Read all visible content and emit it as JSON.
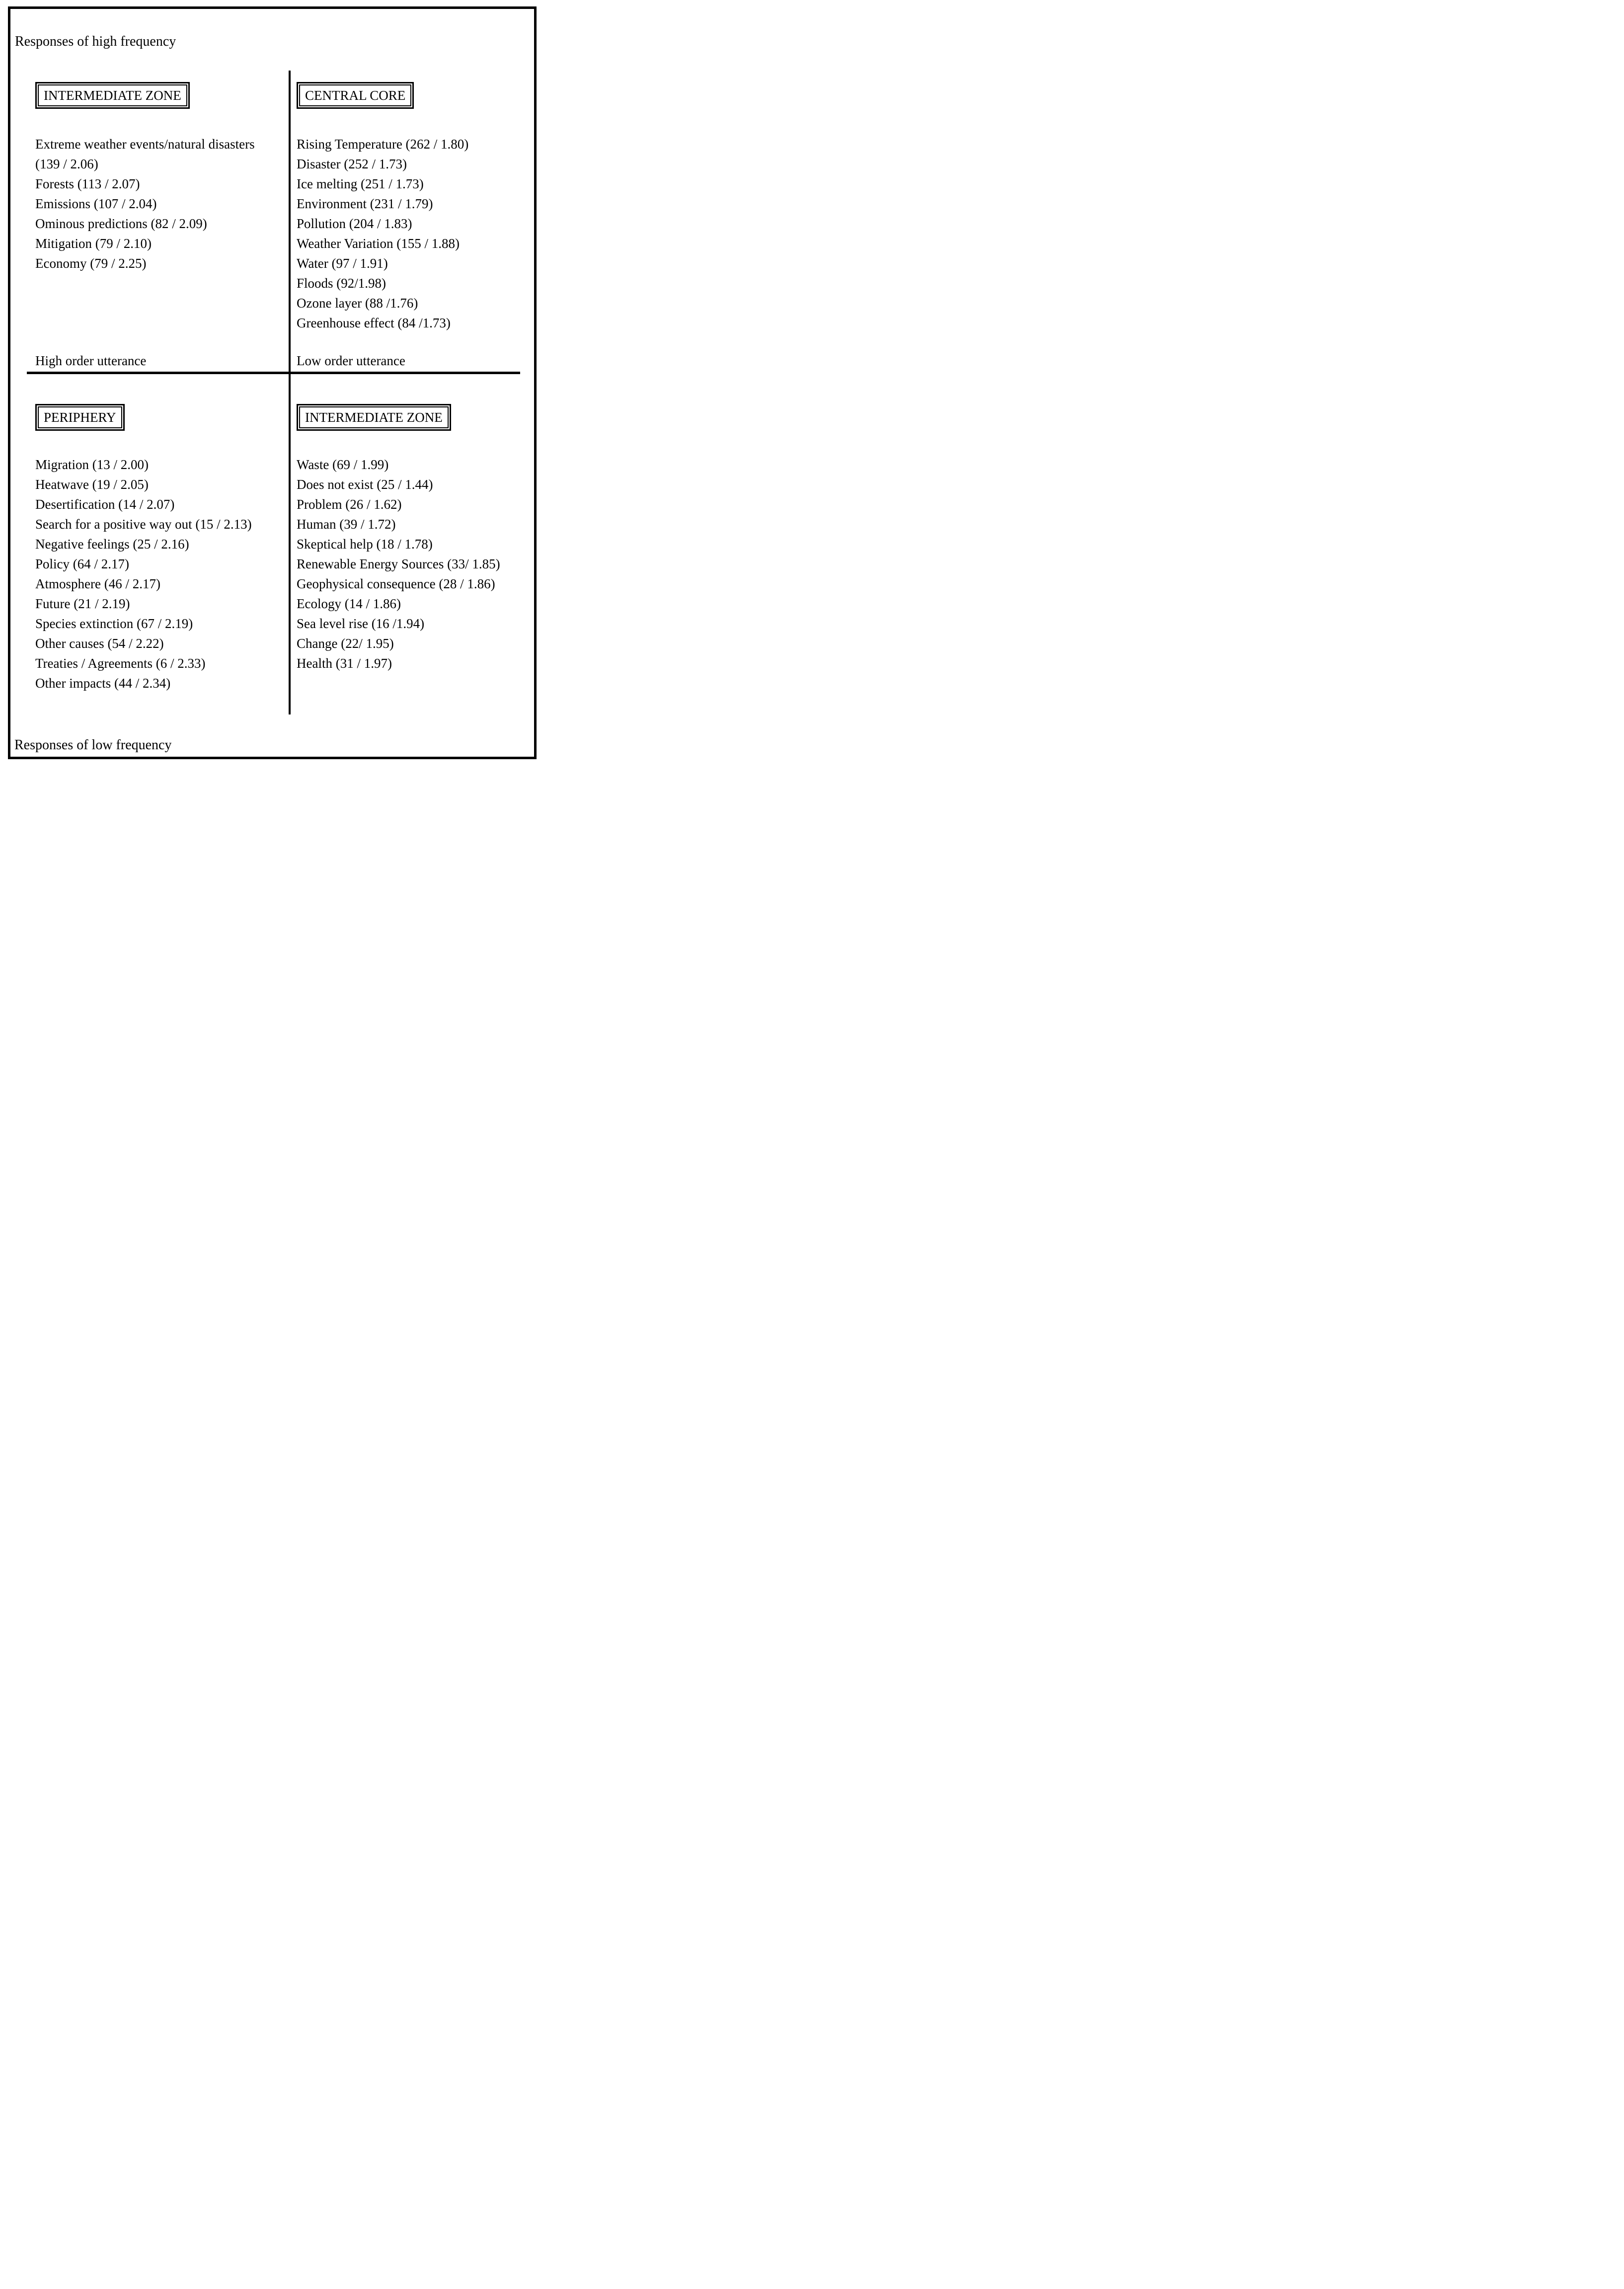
{
  "page": {
    "title_top": "Responses of high frequency",
    "title_bottom": "Responses of low frequency"
  },
  "colors": {
    "ink": "#000000",
    "paper": "#ffffff"
  },
  "quadrants": {
    "top_left": {
      "zone_label": "INTERMEDIATE ZONE",
      "axis_label": "High order utterance",
      "lines": [
        "Extreme weather events/natural disasters",
        "(139 / 2.06)",
        "Forests (113 / 2.07)",
        "Emissions (107 / 2.04)",
        "Ominous predictions (82 / 2.09)",
        "Mitigation (79 / 2.10)",
        "Economy (79 / 2.25)"
      ]
    },
    "top_right": {
      "zone_label": "CENTRAL CORE",
      "axis_label": "Low order utterance",
      "lines": [
        "Rising Temperature (262 / 1.80)",
        "Disaster (252 / 1.73)",
        "Ice melting (251 / 1.73)",
        "Environment (231 / 1.79)",
        "Pollution (204 / 1.83)",
        "Weather Variation (155 / 1.88)",
        "Water (97 / 1.91)",
        "Floods (92/1.98)",
        "Ozone layer (88 /1.76)",
        "Greenhouse effect (84 /1.73)"
      ]
    },
    "bottom_left": {
      "zone_label": "PERIPHERY",
      "lines": [
        "Migration (13 / 2.00)",
        "Heatwave (19 / 2.05)",
        "Desertification (14 / 2.07)",
        "Search for a positive way out (15 / 2.13)",
        "Negative feelings (25 / 2.16)",
        "Policy (64 / 2.17)",
        "Atmosphere (46 / 2.17)",
        "Future (21 / 2.19)",
        "Species extinction (67 / 2.19)",
        "Other causes (54 / 2.22)",
        "Treaties / Agreements (6 / 2.33)",
        "Other impacts (44 / 2.34)"
      ]
    },
    "bottom_right": {
      "zone_label": "INTERMEDIATE ZONE",
      "lines": [
        "Waste (69 / 1.99)",
        "Does not exist (25 / 1.44)",
        "Problem (26 / 1.62)",
        "Human (39 / 1.72)",
        "Skeptical help (18 / 1.78)",
        "Renewable Energy Sources (33/ 1.85)",
        "Geophysical consequence (28 / 1.86)",
        "Ecology (14 / 1.86)",
        "Sea level rise (16 /1.94)",
        "Change (22/ 1.95)",
        "Health (31 / 1.97)"
      ]
    }
  }
}
